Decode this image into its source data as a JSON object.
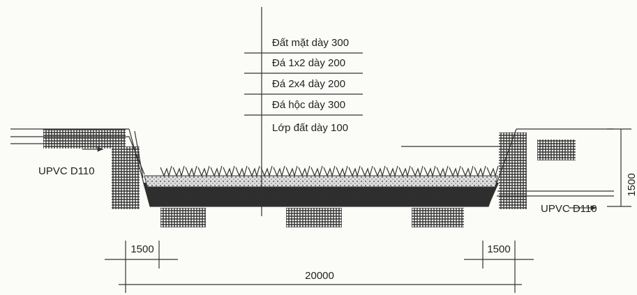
{
  "layers": [
    "Đất mặt dày 300",
    "Đá 1x2 dày 200",
    "Đá 2x4 dày 200",
    "Đá hộc dày 300",
    "Lớp đất dày 100"
  ],
  "inlet": {
    "label": "UPVC D110"
  },
  "outlet": {
    "label": "UPVC D110"
  },
  "dimensions": {
    "depth": 1500,
    "left_slope": 1500,
    "right_slope": 1500,
    "total_width": 20000
  }
}
